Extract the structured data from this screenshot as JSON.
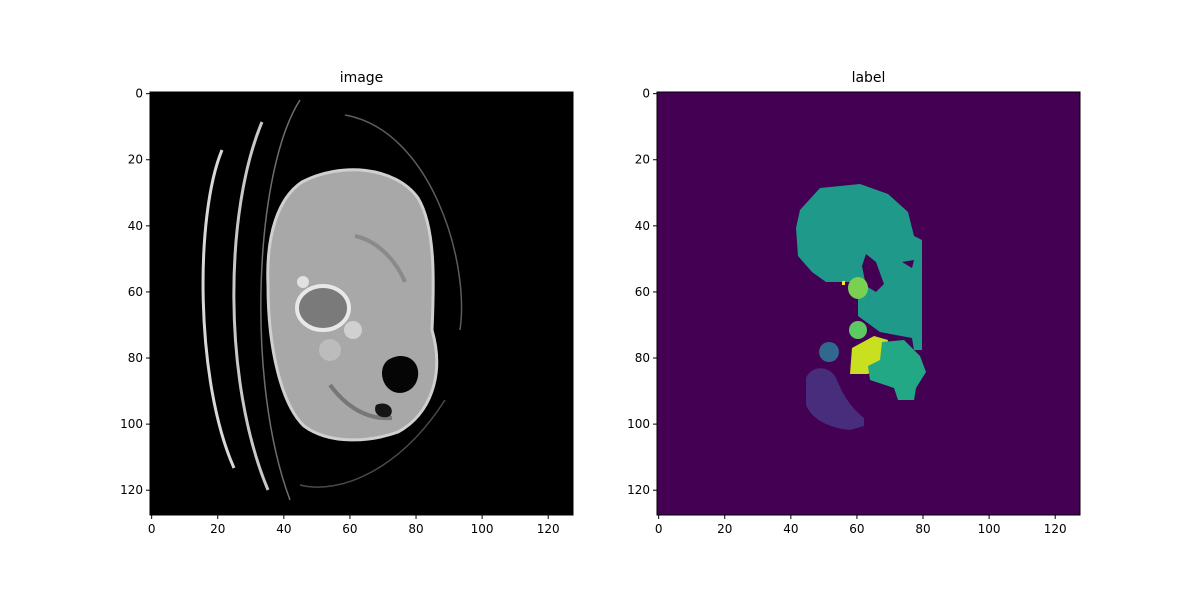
{
  "panels": [
    {
      "title": "image",
      "x_ticks": [
        "0",
        "20",
        "40",
        "60",
        "80",
        "100",
        "120"
      ],
      "y_ticks": [
        "0",
        "20",
        "40",
        "60",
        "80",
        "100",
        "120"
      ],
      "colormap": "gray"
    },
    {
      "title": "label",
      "x_ticks": [
        "0",
        "20",
        "40",
        "60",
        "80",
        "100",
        "120"
      ],
      "y_ticks": [
        "0",
        "20",
        "40",
        "60",
        "80",
        "100",
        "120"
      ],
      "colormap": "viridis"
    }
  ],
  "colors": {
    "image_background": "#000000",
    "organ_gray": "#a8a8a8",
    "tissue_dark": "#5a5a5a",
    "bone_bright": "#e6e6e6",
    "label_background": "#440154",
    "label_liver": "#1f9a8a",
    "label_green_light": "#7ad151",
    "label_green_mid": "#5ec962",
    "label_yellow": "#c8e020",
    "label_teal": "#22a884",
    "label_blue": "#31688e",
    "label_purple": "#472d7b",
    "label_dot": "#fde725"
  }
}
